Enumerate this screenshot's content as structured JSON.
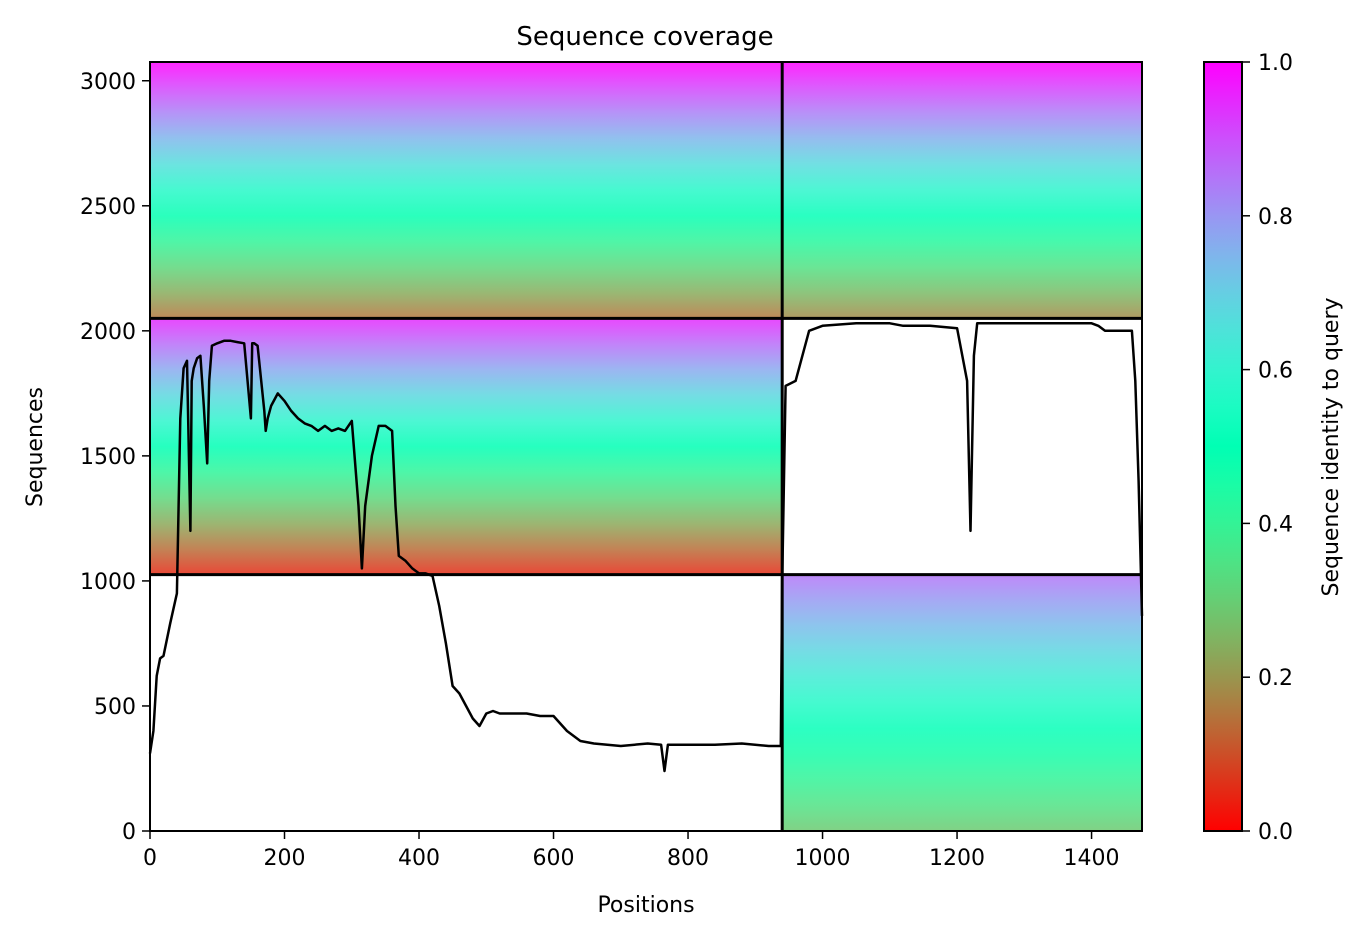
{
  "chart_data": {
    "type": "heatmap",
    "title": "Sequence coverage",
    "xlabel": "Positions",
    "ylabel": "Sequences",
    "xlim": [
      0,
      1475
    ],
    "ylim": [
      0,
      3075
    ],
    "xticks": [
      0,
      200,
      400,
      600,
      800,
      1000,
      1200,
      1400
    ],
    "yticks": [
      0,
      500,
      1000,
      1500,
      2000,
      2500,
      3000
    ],
    "colormap": "rainbow_r",
    "colorbar": {
      "label": "Sequence identity to query",
      "range": [
        0,
        1
      ],
      "ticks": [
        "0.0",
        "0.2",
        "0.4",
        "0.6",
        "0.8",
        "1.0"
      ]
    },
    "block_boundaries": {
      "x": [
        940
      ],
      "y": [
        1025,
        2050
      ]
    },
    "coverage_blocks": [
      {
        "x": [
          0,
          940
        ],
        "y": [
          2050,
          3075
        ],
        "identity_top": 1.0,
        "identity_bottom": 0.15
      },
      {
        "x": [
          940,
          1475
        ],
        "y": [
          2050,
          3075
        ],
        "identity_top": 1.0,
        "identity_bottom": 0.18
      },
      {
        "x": [
          0,
          940
        ],
        "y": [
          1025,
          2050
        ],
        "identity_top": 0.95,
        "identity_bottom": 0.05
      },
      {
        "x": [
          940,
          1475
        ],
        "y": [
          0,
          1025
        ],
        "identity_top": 0.85,
        "identity_bottom": 0.29
      }
    ],
    "series": [
      {
        "x": [
          0,
          5,
          10,
          15,
          20,
          30,
          40,
          45,
          50,
          55,
          60,
          62,
          65,
          70,
          75,
          80,
          85,
          88,
          92,
          100,
          110,
          120,
          130,
          140,
          150,
          152,
          155,
          160,
          170,
          172,
          175,
          180,
          190,
          200,
          210,
          220,
          230,
          240,
          250,
          260,
          270,
          280,
          290,
          300,
          310,
          315,
          320,
          330,
          340,
          350,
          360,
          365,
          370,
          380,
          390,
          400,
          410,
          420,
          430,
          440,
          450,
          460,
          470,
          480,
          490,
          500,
          510,
          520,
          540,
          560,
          580,
          600,
          620,
          640,
          660,
          700,
          740,
          760,
          765,
          770,
          800,
          840,
          880,
          920,
          938,
          940,
          945,
          960,
          980,
          1000,
          1050,
          1100,
          1120,
          1140,
          1160,
          1200,
          1215,
          1220,
          1225,
          1230,
          1260,
          1300,
          1350,
          1400,
          1410,
          1420,
          1440,
          1460,
          1465,
          1470,
          1475
        ],
        "values": [
          310,
          400,
          620,
          690,
          700,
          830,
          950,
          1650,
          1850,
          1880,
          1200,
          1800,
          1850,
          1890,
          1900,
          1700,
          1470,
          1800,
          1940,
          1950,
          1960,
          1960,
          1955,
          1950,
          1650,
          1950,
          1950,
          1940,
          1680,
          1600,
          1650,
          1700,
          1750,
          1720,
          1680,
          1650,
          1630,
          1620,
          1600,
          1620,
          1600,
          1610,
          1600,
          1640,
          1300,
          1050,
          1300,
          1500,
          1620,
          1620,
          1600,
          1300,
          1100,
          1080,
          1050,
          1030,
          1030,
          1020,
          900,
          750,
          580,
          550,
          500,
          450,
          420,
          470,
          480,
          470,
          470,
          470,
          460,
          460,
          400,
          360,
          350,
          340,
          350,
          345,
          240,
          345,
          345,
          345,
          350,
          340,
          340,
          1000,
          1780,
          1800,
          2000,
          2020,
          2030,
          2030,
          2020,
          2020,
          2020,
          2010,
          1800,
          1200,
          1900,
          2030,
          2030,
          2030,
          2030,
          2030,
          2020,
          2000,
          2000,
          2000,
          1800,
          1400,
          860
        ]
      }
    ]
  }
}
